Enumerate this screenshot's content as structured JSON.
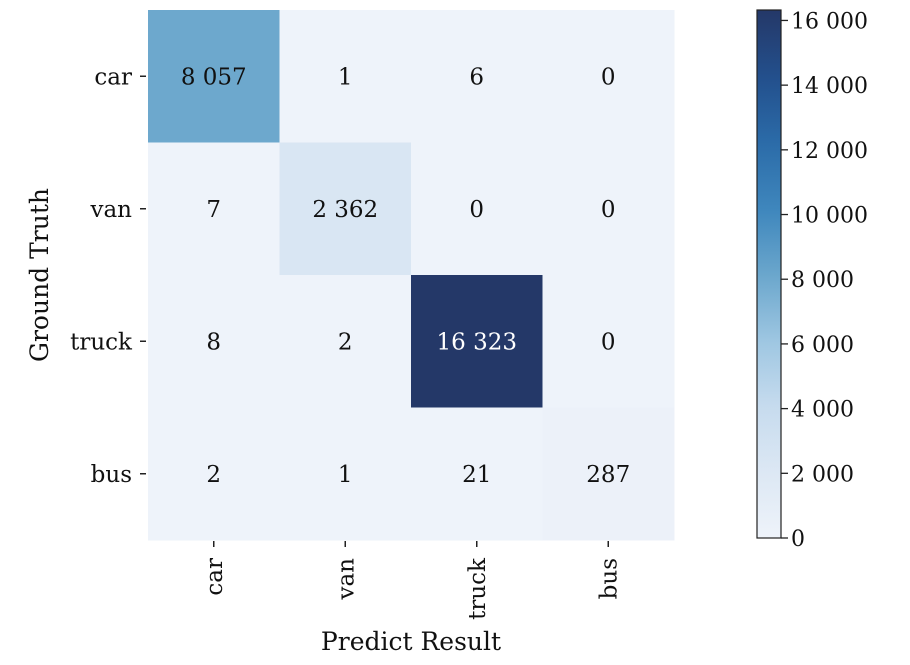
{
  "chart_data": {
    "type": "heatmap",
    "title": "",
    "xlabel": "Predict Result",
    "ylabel": "Ground Truth",
    "x_categories": [
      "car",
      "van",
      "truck",
      "bus"
    ],
    "y_categories": [
      "car",
      "van",
      "truck",
      "bus"
    ],
    "values": [
      [
        8057,
        1,
        6,
        0
      ],
      [
        7,
        2362,
        0,
        0
      ],
      [
        8,
        2,
        16323,
        0
      ],
      [
        2,
        1,
        21,
        287
      ]
    ],
    "value_labels": [
      [
        "8 057",
        "1",
        "6",
        "0"
      ],
      [
        "7",
        "2 362",
        "0",
        "0"
      ],
      [
        "8",
        "2",
        "16 323",
        "0"
      ],
      [
        "2",
        "1",
        "21",
        "287"
      ]
    ],
    "colorscale": "Blues",
    "colorbar": {
      "range": [
        0,
        16323
      ],
      "ticks": [
        0,
        2000,
        4000,
        6000,
        8000,
        10000,
        12000,
        14000,
        16000
      ],
      "tick_labels": [
        "0",
        "2 000",
        "4 000",
        "6 000",
        "8 000",
        "10 000",
        "12 000",
        "14 000",
        "16 000"
      ]
    }
  }
}
